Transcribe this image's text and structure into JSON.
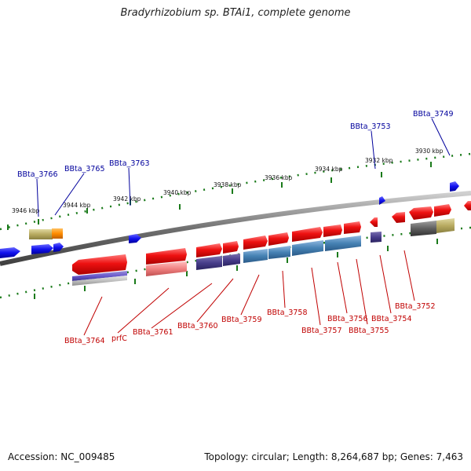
{
  "title": "Bradyrhizobium sp. BTAi1, complete genome",
  "footer": {
    "accession": "Accession: NC_009485",
    "stats": "Topology: circular; Length: 8,264,687 bp; Genes: 7,463"
  },
  "scale_labels": [
    "3946 kbp",
    "3944 kbp",
    "3942 kbp",
    "3940 kbp",
    "3938 kbp",
    "3936 kbp",
    "3934 kbp",
    "3932 kbp",
    "3930 kbp"
  ],
  "top_gene_labels": [
    "BBta_3766",
    "BBta_3765",
    "BBta_3763",
    "BBta_3753",
    "BBta_3749"
  ],
  "bottom_gene_labels": [
    "BBta_3764",
    "prfC",
    "BBta_3761",
    "BBta_3760",
    "BBta_3759",
    "BBta_3758",
    "BBta_3757",
    "BBta_3756",
    "BBta_3755",
    "BBta_3754",
    "BBta_3752"
  ],
  "colors": {
    "top_label": "#00009c",
    "bottom_label": "#c00000",
    "genome_line": "#808080",
    "tick": "#1a7a1a",
    "gene_red": "#ee1111",
    "gene_blue": "#1010ee"
  }
}
